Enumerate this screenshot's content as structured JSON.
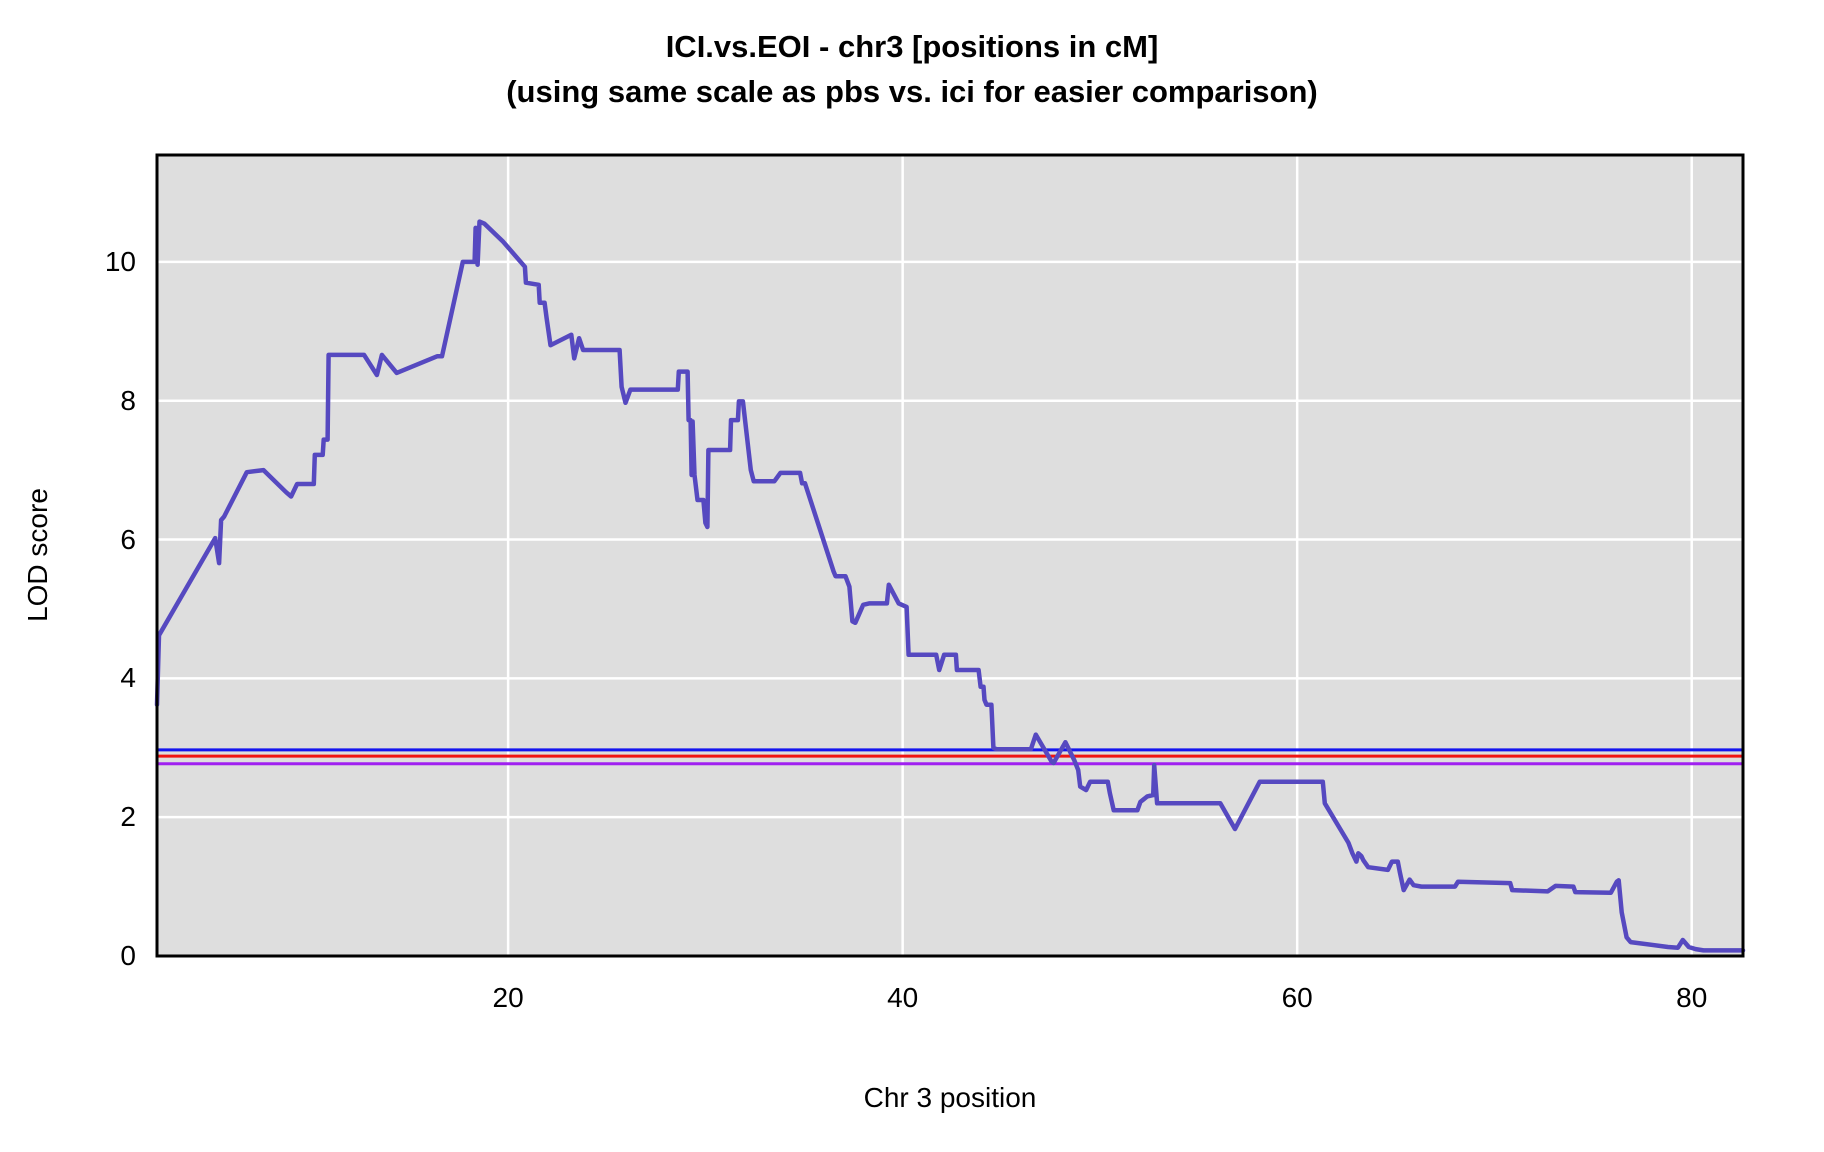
{
  "figure": {
    "title": "ICI.vs.EOI - chr3 [positions in cM]",
    "subtitle": "(using same scale as pbs  vs. ici for easier comparison)"
  },
  "chart_data": {
    "type": "line",
    "title": "ICI.vs.EOI - chr3 [positions in cM]",
    "subtitle": "(using same scale as pbs  vs. ici for easier comparison)",
    "xlabel": "Chr 3 position",
    "ylabel": "LOD score",
    "xlim": [
      2.2,
      82.6
    ],
    "ylim": [
      0,
      11.54
    ],
    "x_ticks": [
      20,
      40,
      60,
      80
    ],
    "y_ticks": [
      0,
      2,
      4,
      6,
      8,
      10
    ],
    "grid": true,
    "legend": "none",
    "colors": {
      "panel_background": "#DEDEDE",
      "grid": "#FFFFFF",
      "border": "#000000",
      "curve": "#5649C0",
      "threshold_blue": "#1515EF",
      "threshold_red": "#F01414",
      "threshold_purple": "#A020F0"
    },
    "thresholds": [
      {
        "name": "blue-threshold-line",
        "color": "#1515EF",
        "y": 2.97
      },
      {
        "name": "red-threshold-line",
        "color": "#F01414",
        "y": 2.88
      },
      {
        "name": "purple-threshold-line",
        "color": "#A020F0",
        "y": 2.77
      }
    ],
    "series": [
      {
        "name": "LOD curve ICI.vs.EOI chr3",
        "color": "#5649C0",
        "points": [
          [
            2.2,
            3.62
          ],
          [
            2.3,
            4.62
          ],
          [
            5.15,
            6.02
          ],
          [
            5.35,
            5.66
          ],
          [
            5.45,
            6.28
          ],
          [
            5.6,
            6.33
          ],
          [
            6.75,
            6.97
          ],
          [
            7.6,
            7.0
          ],
          [
            8.75,
            6.68
          ],
          [
            9.0,
            6.62
          ],
          [
            9.3,
            6.8
          ],
          [
            10.15,
            6.8
          ],
          [
            10.2,
            7.22
          ],
          [
            10.6,
            7.22
          ],
          [
            10.65,
            7.44
          ],
          [
            10.85,
            7.44
          ],
          [
            10.9,
            8.66
          ],
          [
            12.7,
            8.66
          ],
          [
            13.35,
            8.37
          ],
          [
            13.6,
            8.66
          ],
          [
            14.35,
            8.4
          ],
          [
            16.4,
            8.64
          ],
          [
            16.65,
            8.64
          ],
          [
            17.7,
            10.0
          ],
          [
            18.3,
            10.0
          ],
          [
            18.35,
            10.49
          ],
          [
            18.45,
            9.96
          ],
          [
            18.55,
            10.58
          ],
          [
            18.8,
            10.55
          ],
          [
            19.75,
            10.29
          ],
          [
            20.85,
            9.93
          ],
          [
            20.9,
            9.7
          ],
          [
            21.55,
            9.67
          ],
          [
            21.6,
            9.41
          ],
          [
            21.85,
            9.41
          ],
          [
            21.95,
            9.19
          ],
          [
            22.15,
            8.8
          ],
          [
            23.2,
            8.95
          ],
          [
            23.35,
            8.61
          ],
          [
            23.6,
            8.9
          ],
          [
            23.8,
            8.73
          ],
          [
            25.65,
            8.73
          ],
          [
            25.75,
            8.2
          ],
          [
            25.95,
            7.97
          ],
          [
            26.2,
            8.16
          ],
          [
            28.6,
            8.16
          ],
          [
            28.65,
            8.42
          ],
          [
            29.1,
            8.42
          ],
          [
            29.15,
            7.72
          ],
          [
            29.25,
            7.72
          ],
          [
            29.3,
            6.93
          ],
          [
            29.35,
            7.7
          ],
          [
            29.45,
            6.93
          ],
          [
            29.6,
            6.57
          ],
          [
            29.9,
            6.57
          ],
          [
            30.0,
            6.24
          ],
          [
            30.1,
            6.18
          ],
          [
            30.15,
            7.29
          ],
          [
            31.25,
            7.29
          ],
          [
            31.3,
            7.72
          ],
          [
            31.65,
            7.72
          ],
          [
            31.7,
            7.99
          ],
          [
            31.9,
            7.99
          ],
          [
            32.3,
            7.0
          ],
          [
            32.45,
            6.84
          ],
          [
            33.5,
            6.84
          ],
          [
            33.8,
            6.96
          ],
          [
            34.8,
            6.96
          ],
          [
            34.9,
            6.81
          ],
          [
            35.05,
            6.81
          ],
          [
            36.5,
            5.54
          ],
          [
            36.6,
            5.47
          ],
          [
            37.1,
            5.47
          ],
          [
            37.3,
            5.32
          ],
          [
            37.45,
            4.82
          ],
          [
            37.6,
            4.8
          ],
          [
            38.0,
            5.06
          ],
          [
            38.3,
            5.08
          ],
          [
            39.2,
            5.08
          ],
          [
            39.3,
            5.35
          ],
          [
            39.8,
            5.08
          ],
          [
            40.2,
            5.03
          ],
          [
            40.3,
            4.34
          ],
          [
            41.7,
            4.34
          ],
          [
            41.85,
            4.12
          ],
          [
            42.1,
            4.34
          ],
          [
            42.7,
            4.34
          ],
          [
            42.75,
            4.12
          ],
          [
            43.85,
            4.12
          ],
          [
            43.95,
            3.88
          ],
          [
            44.1,
            3.88
          ],
          [
            44.15,
            3.69
          ],
          [
            44.25,
            3.62
          ],
          [
            44.5,
            3.62
          ],
          [
            44.6,
            3.0
          ],
          [
            44.75,
            2.98
          ],
          [
            46.5,
            2.98
          ],
          [
            46.75,
            3.19
          ],
          [
            47.55,
            2.8
          ],
          [
            47.65,
            2.78
          ],
          [
            48.25,
            3.08
          ],
          [
            48.7,
            2.82
          ],
          [
            48.9,
            2.68
          ],
          [
            49.0,
            2.44
          ],
          [
            49.3,
            2.39
          ],
          [
            49.5,
            2.51
          ],
          [
            50.4,
            2.51
          ],
          [
            50.5,
            2.35
          ],
          [
            50.7,
            2.1
          ],
          [
            51.9,
            2.1
          ],
          [
            52.05,
            2.22
          ],
          [
            52.4,
            2.3
          ],
          [
            52.7,
            2.32
          ],
          [
            52.75,
            2.75
          ],
          [
            52.9,
            2.2
          ],
          [
            56.1,
            2.2
          ],
          [
            56.85,
            1.83
          ],
          [
            58.1,
            2.51
          ],
          [
            61.3,
            2.51
          ],
          [
            61.4,
            2.2
          ],
          [
            62.6,
            1.63
          ],
          [
            62.8,
            1.48
          ],
          [
            63.0,
            1.36
          ],
          [
            63.1,
            1.48
          ],
          [
            63.25,
            1.44
          ],
          [
            63.35,
            1.38
          ],
          [
            63.6,
            1.28
          ],
          [
            64.6,
            1.24
          ],
          [
            64.8,
            1.36
          ],
          [
            65.1,
            1.36
          ],
          [
            65.2,
            1.21
          ],
          [
            65.4,
            0.95
          ],
          [
            65.7,
            1.1
          ],
          [
            65.9,
            1.02
          ],
          [
            66.3,
            1.0
          ],
          [
            68.0,
            1.0
          ],
          [
            68.15,
            1.07
          ],
          [
            70.8,
            1.05
          ],
          [
            70.9,
            0.95
          ],
          [
            72.7,
            0.93
          ],
          [
            73.1,
            1.01
          ],
          [
            74.0,
            1.0
          ],
          [
            74.1,
            0.92
          ],
          [
            75.9,
            0.91
          ],
          [
            76.2,
            1.07
          ],
          [
            76.3,
            1.09
          ],
          [
            76.45,
            0.63
          ],
          [
            76.7,
            0.27
          ],
          [
            76.9,
            0.2
          ],
          [
            78.8,
            0.13
          ],
          [
            79.3,
            0.12
          ],
          [
            79.55,
            0.23
          ],
          [
            79.85,
            0.13
          ],
          [
            80.2,
            0.1
          ],
          [
            80.6,
            0.08
          ],
          [
            82.6,
            0.08
          ]
        ]
      }
    ]
  }
}
